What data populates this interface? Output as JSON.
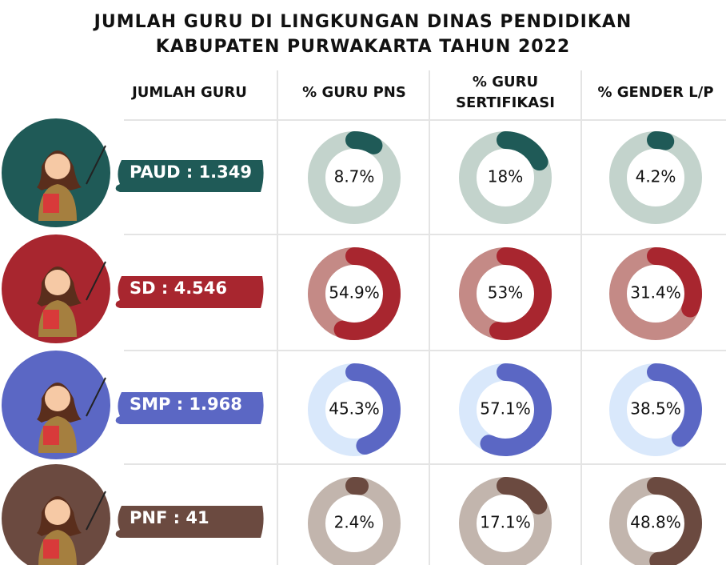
{
  "title_lines": [
    "JUMLAH GURU DI LINGKUNGAN DINAS PENDIDIKAN",
    "KABUPATEN PURWAKARTA TAHUN 2022"
  ],
  "columns": [
    [
      "JUMLAH GURU"
    ],
    [
      "% GURU PNS"
    ],
    [
      "% GURU",
      "SERTIFIKASI"
    ],
    [
      "% GENDER L/P"
    ]
  ],
  "rows": [
    {
      "label": "PAUD : 1.349",
      "color": "#1f5a57",
      "track": "#c3d3cc",
      "cells": [
        {
          "value": 8.7,
          "label": "8.7%"
        },
        {
          "value": 18,
          "label": "18%"
        },
        {
          "value": 4.2,
          "label": "4.2%"
        }
      ]
    },
    {
      "label": "SD : 4.546",
      "color": "#a8262f",
      "track": "#c48a86",
      "cells": [
        {
          "value": 54.9,
          "label": "54.9%"
        },
        {
          "value": 53,
          "label": "53%"
        },
        {
          "value": 31.4,
          "label": "31.4%"
        }
      ]
    },
    {
      "label": "SMP : 1.968",
      "color": "#5b67c4",
      "track": "#d9e8fb",
      "cells": [
        {
          "value": 45.3,
          "label": "45.3%"
        },
        {
          "value": 57.1,
          "label": "57.1%"
        },
        {
          "value": 38.5,
          "label": "38.5%"
        }
      ]
    },
    {
      "label": "PNF : 41",
      "color": "#6b4a40",
      "track": "#c2b5ad",
      "cells": [
        {
          "value": 2.4,
          "label": "2.4%"
        },
        {
          "value": 17.1,
          "label": "17.1%"
        },
        {
          "value": 48.8,
          "label": "48.8%"
        }
      ]
    }
  ]
}
